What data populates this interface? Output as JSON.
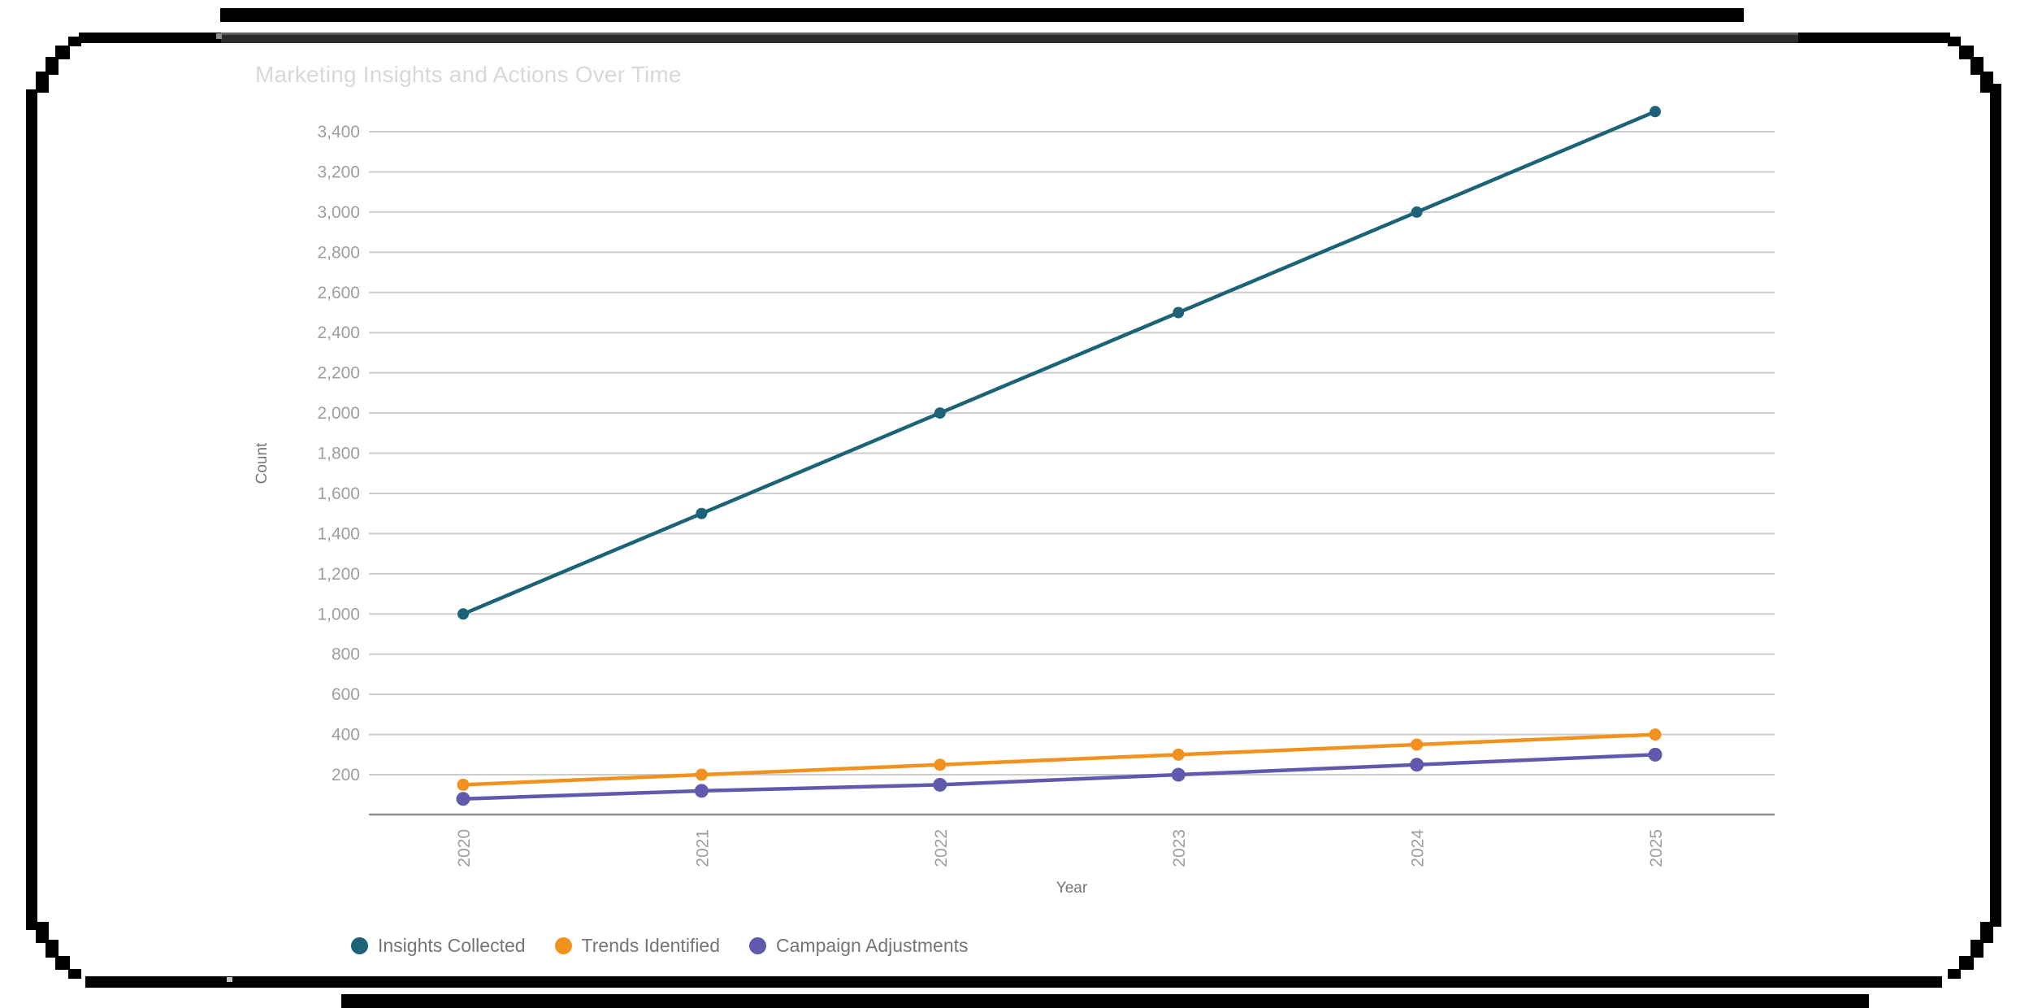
{
  "chart_data": {
    "type": "line",
    "title": "Marketing Insights and Actions Over Time",
    "xlabel": "Year",
    "ylabel": "Count",
    "categories": [
      "2020",
      "2021",
      "2022",
      "2023",
      "2024",
      "2025"
    ],
    "y_tick_labels": [
      "200",
      "400",
      "600",
      "800",
      "1,000",
      "1,200",
      "1,400",
      "1,600",
      "1,800",
      "2,000",
      "2,200",
      "2,400",
      "2,600",
      "2,800",
      "3,000",
      "3,200",
      "3,400"
    ],
    "ylim": [
      0,
      3550
    ],
    "grid": true,
    "legend_position": "bottom-left",
    "axis_colors": {
      "gridline": "#cdcdcd",
      "baseline": "#8f8f8f",
      "tick_label": "#9e9e9e",
      "axis_title": "#757575",
      "title": "#d8d8d8"
    },
    "series": [
      {
        "name": "Insights Collected",
        "color": "#1C6378",
        "values": [
          1000,
          1500,
          2000,
          2500,
          3000,
          3500
        ]
      },
      {
        "name": "Trends Identified",
        "color": "#F2921E",
        "values": [
          150,
          200,
          250,
          300,
          350,
          400
        ]
      },
      {
        "name": "Campaign Adjustments",
        "color": "#6159AD",
        "values": [
          80,
          120,
          150,
          200,
          250,
          300
        ]
      }
    ]
  }
}
